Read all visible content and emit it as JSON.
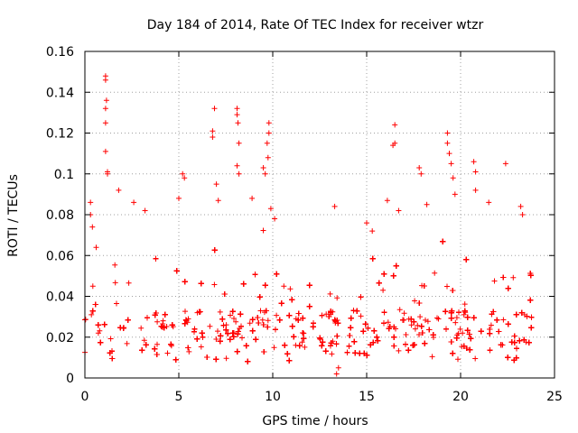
{
  "chart_data": {
    "type": "scatter",
    "title": "Day 184 of 2014, Rate Of TEC Index for receiver wtzr",
    "xlabel": "GPS time / hours",
    "ylabel": "ROTI / TECUs",
    "xlim": [
      0,
      25
    ],
    "ylim": [
      0,
      0.16
    ],
    "x_ticks": [
      0,
      5,
      10,
      15,
      20,
      25
    ],
    "x_tick_labels": [
      "0",
      "5",
      "10",
      "15",
      "20",
      "25"
    ],
    "y_ticks": [
      0,
      0.02,
      0.04,
      0.06,
      0.08,
      0.1,
      0.12,
      0.14,
      0.16
    ],
    "y_tick_labels": [
      "0",
      "0.02",
      "0.04",
      "0.06",
      "0.08",
      "0.1",
      "0.12",
      "0.14",
      "0.16"
    ],
    "grid": true,
    "marker": "+",
    "marker_color": "#ff0000",
    "data_gap_hours": [
      13.5,
      13.9
    ],
    "series": [
      {
        "name": "ROTI",
        "sample_points": [
          [
            0.3,
            0.086
          ],
          [
            0.3,
            0.08
          ],
          [
            0.4,
            0.074
          ],
          [
            0.6,
            0.064
          ],
          [
            1.1,
            0.148
          ],
          [
            1.1,
            0.146
          ],
          [
            1.15,
            0.136
          ],
          [
            1.1,
            0.132
          ],
          [
            1.1,
            0.125
          ],
          [
            1.1,
            0.111
          ],
          [
            1.2,
            0.101
          ],
          [
            1.2,
            0.1
          ],
          [
            1.8,
            0.092
          ],
          [
            2.6,
            0.086
          ],
          [
            3.2,
            0.082
          ],
          [
            5.2,
            0.1
          ],
          [
            5.3,
            0.098
          ],
          [
            5.0,
            0.088
          ],
          [
            6.9,
            0.132
          ],
          [
            6.8,
            0.121
          ],
          [
            6.8,
            0.118
          ],
          [
            7.0,
            0.095
          ],
          [
            7.1,
            0.087
          ],
          [
            8.1,
            0.132
          ],
          [
            8.1,
            0.129
          ],
          [
            8.15,
            0.125
          ],
          [
            8.2,
            0.115
          ],
          [
            8.1,
            0.104
          ],
          [
            8.2,
            0.1
          ],
          [
            8.9,
            0.088
          ],
          [
            9.5,
            0.103
          ],
          [
            9.6,
            0.1
          ],
          [
            9.8,
            0.125
          ],
          [
            9.8,
            0.12
          ],
          [
            9.7,
            0.115
          ],
          [
            9.75,
            0.108
          ],
          [
            9.9,
            0.083
          ],
          [
            10.1,
            0.078
          ],
          [
            13.3,
            0.084
          ],
          [
            13.5,
            0.005
          ],
          [
            13.4,
            0.002
          ],
          [
            15.0,
            0.076
          ],
          [
            15.3,
            0.072
          ],
          [
            16.5,
            0.124
          ],
          [
            16.5,
            0.115
          ],
          [
            16.4,
            0.114
          ],
          [
            16.7,
            0.082
          ],
          [
            16.1,
            0.087
          ],
          [
            17.8,
            0.103
          ],
          [
            17.9,
            0.1
          ],
          [
            18.2,
            0.085
          ],
          [
            19.3,
            0.12
          ],
          [
            19.3,
            0.115
          ],
          [
            19.4,
            0.11
          ],
          [
            19.5,
            0.105
          ],
          [
            19.6,
            0.098
          ],
          [
            19.7,
            0.09
          ],
          [
            20.7,
            0.106
          ],
          [
            20.8,
            0.101
          ],
          [
            20.8,
            0.092
          ],
          [
            21.5,
            0.086
          ],
          [
            22.4,
            0.105
          ],
          [
            23.2,
            0.084
          ],
          [
            23.3,
            0.08
          ]
        ]
      }
    ]
  }
}
